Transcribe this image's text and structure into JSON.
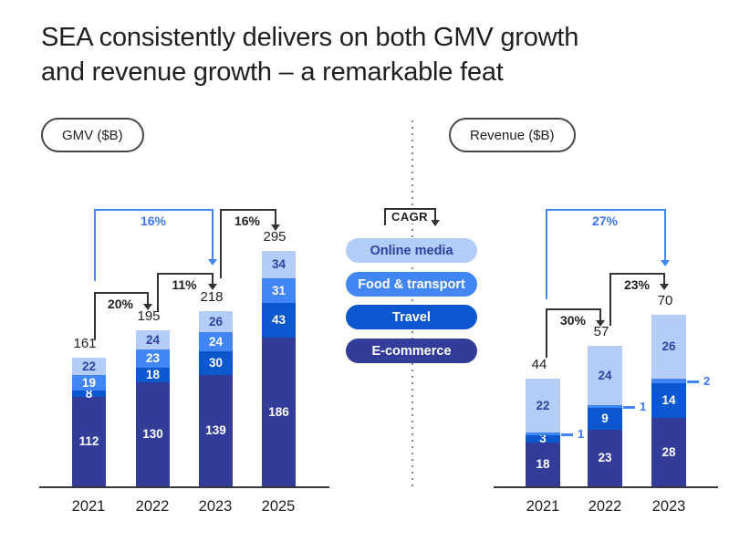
{
  "title": {
    "line1": "SEA consistently delivers on both GMV growth",
    "line2": "and revenue growth – a remarkable feat"
  },
  "cagr_label": "CAGR",
  "colors": {
    "ecommerce": "#333d99",
    "travel": "#0b57d0",
    "food_transport": "#4285f4",
    "online_media": "#b3ccf8",
    "label_on_light": "#32409e",
    "label_on_dark": "#ffffff",
    "ink": "#202124",
    "bracket_black": "#333333",
    "accent_blue": "#4285f4",
    "accent_blue_text": "#3b76ef",
    "axis": "#37393b"
  },
  "legend": [
    {
      "key": "online_media",
      "label": "Online media"
    },
    {
      "key": "food_transport",
      "label": "Food & transport"
    },
    {
      "key": "travel",
      "label": "Travel"
    },
    {
      "key": "ecommerce",
      "label": "E-commerce"
    }
  ],
  "chart_data": [
    {
      "type": "bar",
      "stacked": true,
      "title": "GMV ($B)",
      "unit": "$B",
      "categories": [
        "2021",
        "2022",
        "2023",
        "2025"
      ],
      "series": [
        {
          "name": "E-commerce",
          "key": "ecommerce",
          "values": [
            112,
            130,
            139,
            186
          ]
        },
        {
          "name": "Travel",
          "key": "travel",
          "values": [
            8,
            18,
            30,
            43
          ]
        },
        {
          "name": "Food & transport",
          "key": "food_transport",
          "values": [
            19,
            23,
            24,
            31
          ]
        },
        {
          "name": "Online media",
          "key": "online_media",
          "values": [
            22,
            24,
            26,
            34
          ]
        }
      ],
      "totals": [
        161,
        195,
        218,
        295
      ],
      "growth": [
        {
          "from": "2021",
          "to": "2022",
          "label": "20%",
          "style": "black"
        },
        {
          "from": "2022",
          "to": "2023",
          "label": "11%",
          "style": "black"
        },
        {
          "from": "2021",
          "to": "2023",
          "label": "16%",
          "style": "blue"
        },
        {
          "from": "2023",
          "to": "2025",
          "label": "16%",
          "style": "black"
        }
      ]
    },
    {
      "type": "bar",
      "stacked": true,
      "title": "Revenue ($B)",
      "unit": "$B",
      "categories": [
        "2021",
        "2022",
        "2023"
      ],
      "series": [
        {
          "name": "E-commerce",
          "key": "ecommerce",
          "values": [
            18,
            23,
            28
          ]
        },
        {
          "name": "Travel",
          "key": "travel",
          "values": [
            3,
            9,
            14
          ]
        },
        {
          "name": "Food & transport",
          "key": "food_transport",
          "values": [
            1,
            1,
            2
          ],
          "label_outside": true
        },
        {
          "name": "Online media",
          "key": "online_media",
          "values": [
            22,
            24,
            26
          ]
        }
      ],
      "totals": [
        44,
        57,
        70
      ],
      "growth": [
        {
          "from": "2021",
          "to": "2022",
          "label": "30%",
          "style": "black"
        },
        {
          "from": "2022",
          "to": "2023",
          "label": "23%",
          "style": "black"
        },
        {
          "from": "2021",
          "to": "2023",
          "label": "27%",
          "style": "blue"
        }
      ]
    }
  ]
}
